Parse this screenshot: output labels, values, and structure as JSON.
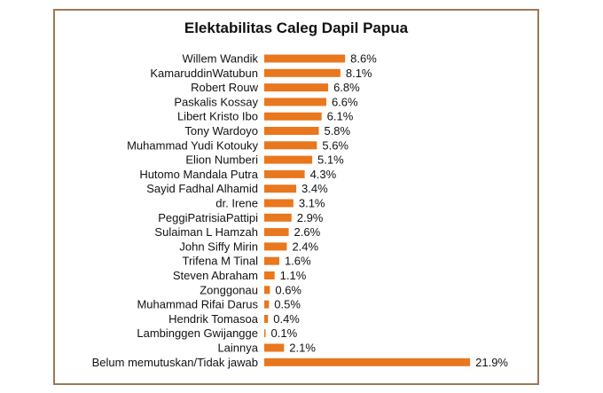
{
  "chart_data": {
    "type": "bar",
    "orientation": "horizontal",
    "title": "Elektabilitas Caleg Dapil Papua",
    "xlabel": "",
    "ylabel": "",
    "bar_color": "#e8771e",
    "frame_color": "#9a7a55",
    "unit_suffix": "%",
    "categories": [
      "Willem Wandik",
      "KamaruddinWatubun",
      "Robert Rouw",
      "Paskalis Kossay",
      "Libert Kristo Ibo",
      "Tony Wardoyo",
      "Muhammad Yudi Kotouky",
      "Elion Numberi",
      "Hutomo Mandala Putra",
      "Sayid Fadhal Alhamid",
      "dr. Irene",
      "PeggiPatrisiaPattipi",
      "Sulaiman L Hamzah",
      "John Siffy Mirin",
      "Trifena M Tinal",
      "Steven Abraham",
      "Zonggonau",
      "Muhammad Rifai Darus",
      "Hendrik Tomasoa",
      "Lambinggen Gwijangge",
      "Lainnya",
      "Belum memutuskan/Tidak jawab"
    ],
    "values": [
      8.6,
      8.1,
      6.8,
      6.6,
      6.1,
      5.8,
      5.6,
      5.1,
      4.3,
      3.4,
      3.1,
      2.9,
      2.6,
      2.4,
      1.6,
      1.1,
      0.6,
      0.5,
      0.4,
      0.1,
      2.1,
      21.9
    ],
    "labels": [
      "8.6%",
      "8.1%",
      "6.8%",
      "6.6%",
      "6.1%",
      "5.8%",
      "5.6%",
      "5.1%",
      "4.3%",
      "3.4%",
      "3.1%",
      "2.9%",
      "2.6%",
      "2.4%",
      "1.6%",
      "1.1%",
      "0.6%",
      "0.5%",
      "0.4%",
      "0.1%",
      "2.1%",
      "21.9%"
    ]
  }
}
